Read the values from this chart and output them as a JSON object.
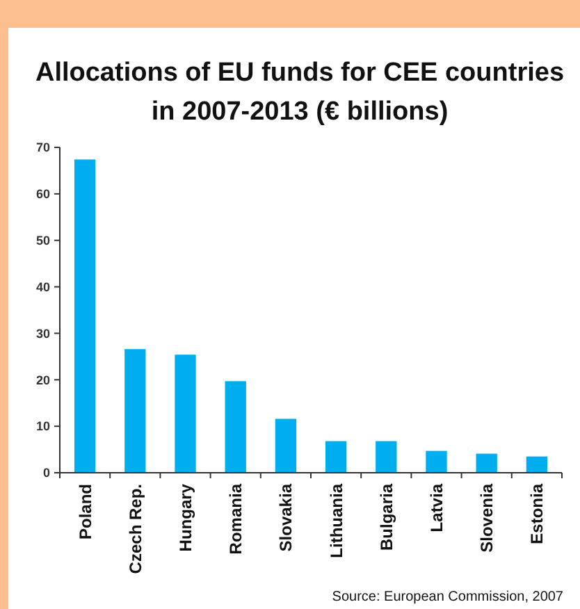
{
  "chart_data": {
    "type": "bar",
    "title": "Allocations of EU funds for CEE countries in 2007-2013 (€ billions)",
    "categories": [
      "Poland",
      "Czech Rep.",
      "Hungary",
      "Romania",
      "Slovakia",
      "Lithuania",
      "Bulgaria",
      "Latvia",
      "Slovenia",
      "Estonia"
    ],
    "values": [
      67.4,
      26.6,
      25.4,
      19.7,
      11.6,
      6.8,
      6.8,
      4.7,
      4.1,
      3.5
    ],
    "color": "#00aeef",
    "ylim": [
      0,
      70
    ],
    "yticks": [
      0,
      10,
      20,
      30,
      40,
      50,
      60,
      70
    ],
    "grid": false,
    "annotations": [
      "Source: European Commission, 2007"
    ]
  }
}
